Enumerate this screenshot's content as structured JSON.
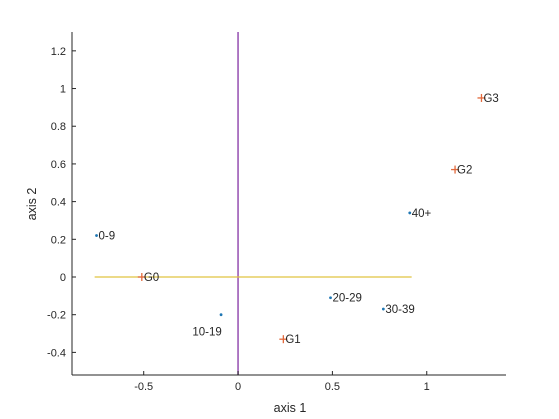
{
  "chart_data": {
    "type": "scatter",
    "xlabel": "axis 1",
    "ylabel": "axis 2",
    "xlim": [
      -0.88,
      1.42
    ],
    "ylim": [
      -0.52,
      1.3
    ],
    "xticks": [
      -0.5,
      0,
      0.5,
      1
    ],
    "yticks": [
      -0.4,
      -0.2,
      0,
      0.2,
      0.4,
      0.6,
      0.8,
      1,
      1.2
    ],
    "grid": false,
    "reference_lines": {
      "vertical": {
        "x": 0,
        "y_range": [
          -0.52,
          1.3
        ],
        "color": "#9b59b6"
      },
      "horizontal": {
        "y": 0,
        "x_range": [
          -0.76,
          0.92
        ],
        "color": "#e0c341"
      }
    },
    "series": [
      {
        "marker": "dot",
        "color": "#1f77b4",
        "points": [
          {
            "label": "0-9",
            "x": -0.75,
            "y": 0.22
          },
          {
            "label": "10-19",
            "x": -0.09,
            "y": -0.2
          },
          {
            "label": "20-29",
            "x": 0.49,
            "y": -0.11
          },
          {
            "label": "30-39",
            "x": 0.77,
            "y": -0.17
          },
          {
            "label": "40+",
            "x": 0.91,
            "y": 0.34
          }
        ]
      },
      {
        "marker": "plus",
        "color": "#e2693c",
        "points": [
          {
            "label": "G0",
            "x": -0.51,
            "y": 0.0
          },
          {
            "label": "G1",
            "x": 0.24,
            "y": -0.33
          },
          {
            "label": "G2",
            "x": 1.15,
            "y": 0.57
          },
          {
            "label": "G3",
            "x": 1.29,
            "y": 0.95
          }
        ]
      }
    ]
  }
}
